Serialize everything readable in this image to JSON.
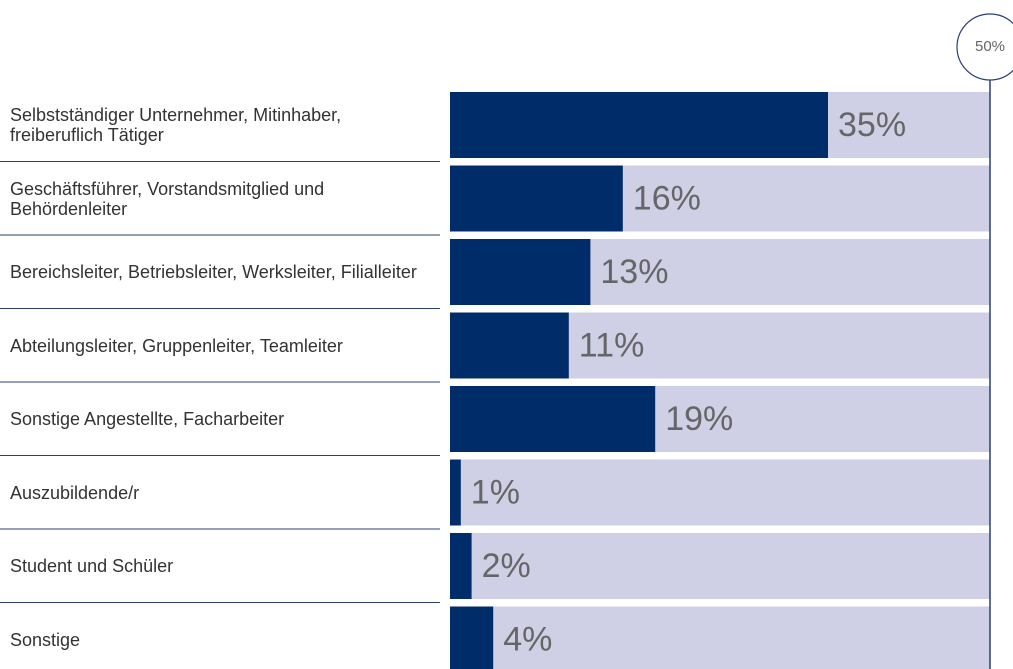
{
  "chart_data": {
    "type": "bar",
    "orientation": "horizontal",
    "categories": [
      "Selbstständiger Unternehmer, Mitinhaber, freiberuflich Tätiger",
      "Geschäftsführer, Vorstandsmitglied und Behördenleiter",
      "Bereichsleiter, Betriebsleiter, Werksleiter, Filialleiter",
      "Abteilungsleiter, Gruppenleiter, Teamleiter",
      "Sonstige Angestellte, Facharbeiter",
      "Auszubildende/r",
      "Student und Schüler",
      "Sonstige"
    ],
    "values": [
      35,
      16,
      13,
      11,
      19,
      1,
      2,
      4
    ],
    "value_labels": [
      "35%",
      "16%",
      "13%",
      "11%",
      "19%",
      "1%",
      "2%",
      "4%"
    ],
    "color": "#002d6a",
    "background_color": "#cfd0e6",
    "xlim": [
      0,
      50
    ],
    "xticks": [
      {
        "value": 50,
        "label": "50%"
      }
    ]
  }
}
